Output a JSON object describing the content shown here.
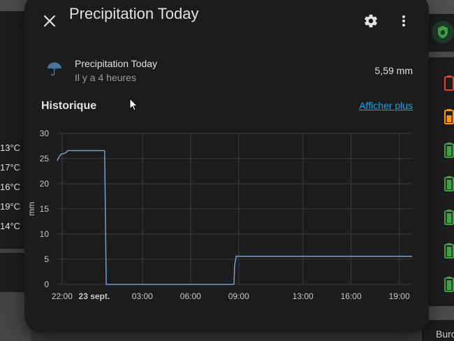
{
  "background": {
    "left_temperatures": [
      "13°C",
      "17°C",
      "16°C",
      "19°C",
      "14°C"
    ],
    "right_bottom_text": "Burc",
    "battery_colors": [
      "#db4437",
      "#ff9800",
      "#43a047",
      "#43a047",
      "#43a047",
      "#43a047",
      "#43a047"
    ],
    "shield_color": "#43a047"
  },
  "dialog": {
    "title": "Precipitation Today",
    "close_icon": "close-icon",
    "settings_icon": "gear-icon",
    "menu_icon": "dots-vertical-icon"
  },
  "entity": {
    "icon": "umbrella-icon",
    "icon_color": "#44739e",
    "name": "Precipitation Today",
    "last_changed": "Il y a 4 heures",
    "value": "5,59 mm"
  },
  "history": {
    "title": "Historique",
    "show_more": "Afficher plus"
  },
  "chart_data": {
    "type": "line",
    "ylabel": "mm",
    "ylim": [
      0,
      30
    ],
    "yticks": [
      0,
      5,
      10,
      15,
      20,
      25,
      30
    ],
    "xlim_hours": [
      -0.3,
      13.2
    ],
    "xticks": [
      {
        "h": 0,
        "label": "22:00",
        "bold": false
      },
      {
        "h": 2,
        "label": "23 sept.",
        "bold": true
      },
      {
        "h": 5,
        "label": "03:00",
        "bold": false
      },
      {
        "h": 8,
        "label": "06:00",
        "bold": false
      },
      {
        "h": 11,
        "label": "09:00",
        "bold": false
      },
      {
        "h": 15,
        "label": "13:00",
        "bold": false
      },
      {
        "h": 18,
        "label": "16:00",
        "bold": false
      },
      {
        "h": 21,
        "label": "19:00",
        "bold": false
      }
    ],
    "line_color": "#6f9fd0",
    "series": [
      {
        "points": [
          [
            -0.3,
            24.6
          ],
          [
            -0.2,
            25.3
          ],
          [
            -0.05,
            25.9
          ],
          [
            0.1,
            26.0
          ],
          [
            0.25,
            26.2
          ],
          [
            0.35,
            26.6
          ],
          [
            2.6,
            26.6
          ],
          [
            2.65,
            26.6
          ],
          [
            2.75,
            0
          ],
          [
            10.7,
            0
          ],
          [
            10.75,
            3.9
          ],
          [
            10.85,
            5.59
          ],
          [
            21.8,
            5.59
          ]
        ]
      }
    ]
  }
}
